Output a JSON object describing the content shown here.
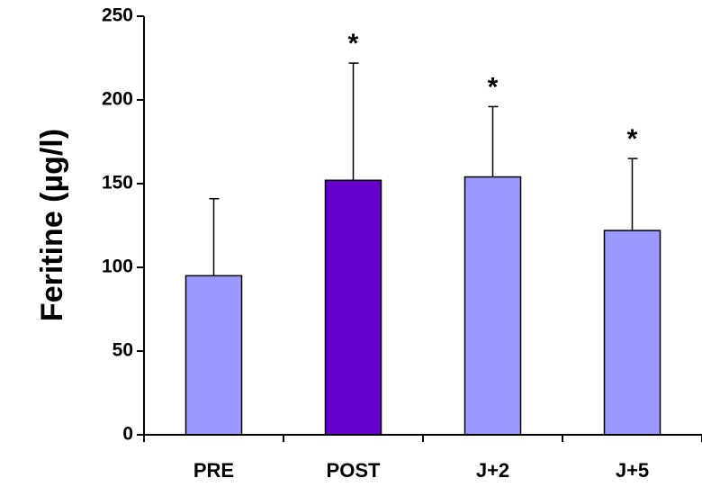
{
  "chart_data": {
    "type": "bar",
    "title": "",
    "xlabel": "",
    "ylabel": "Feritine (µg/l)",
    "ylim": [
      0,
      250
    ],
    "yticks": [
      0,
      50,
      100,
      150,
      200,
      250
    ],
    "grid": false,
    "categories": [
      "PRE",
      "POST",
      "J+2",
      "J+5"
    ],
    "series": [
      {
        "values": [
          95,
          152,
          154,
          122
        ],
        "errors": [
          46,
          70,
          42,
          43
        ],
        "colors": [
          "#9999ff",
          "#6600cc",
          "#9999ff",
          "#9999ff"
        ],
        "annotations": [
          "",
          "*",
          "*",
          "*"
        ]
      }
    ]
  }
}
